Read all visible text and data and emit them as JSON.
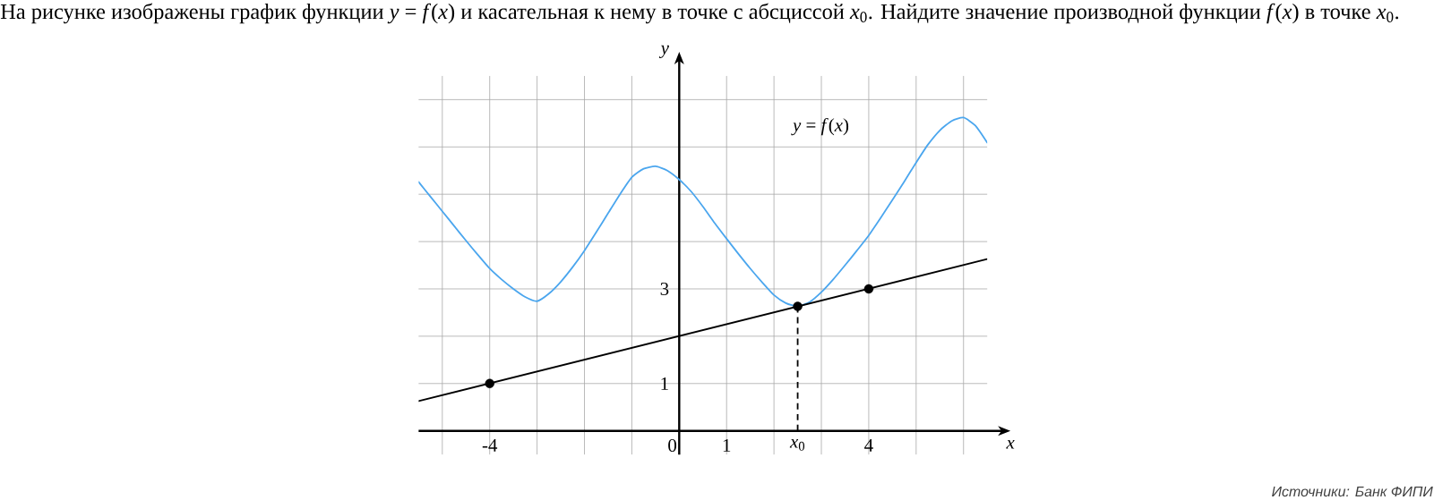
{
  "chart_data": {
    "type": "line",
    "title": "На рисунке изображены график функции *y* = *f*(*x*) и касательная к нему в точке с абсциссой *x*$_{0}$. Найдите значение производной функции *f*(*x*) в точке *x*$_{0}$.",
    "xlabel": "x",
    "ylabel": "y",
    "xlim": [
      -5.5,
      6.5
    ],
    "ylim": [
      -0.5,
      7.5
    ],
    "xticks": [
      {
        "value": -5,
        "label": null
      },
      -4,
      {
        "value": -3,
        "label": null
      },
      {
        "value": -2,
        "label": null
      },
      {
        "value": -1,
        "label": null
      },
      0,
      1,
      {
        "value": 2,
        "label": null
      },
      {
        "value": 3,
        "label": null
      },
      4,
      {
        "value": 5,
        "label": null
      },
      {
        "value": 6,
        "label": null
      }
    ],
    "yticks": [
      1,
      {
        "value": 2,
        "label": null
      },
      3,
      {
        "value": 4,
        "label": null
      },
      {
        "value": 5,
        "label": null
      },
      {
        "value": 6,
        "label": null
      },
      {
        "value": 7,
        "label": null
      }
    ],
    "grid": true,
    "annotations": [
      {
        "text": "*x*$_{0}$",
        "x": 2.5,
        "y": 0
      },
      "Источники: Банк ФИПИ"
    ],
    "series": [
      {
        "name": "*y* = *f*(*x*)",
        "color": "#4ba6ee",
        "line_style": "solid",
        "marker": "none",
        "x": [
          -5.5,
          -5.25,
          -5,
          -4.75,
          -4.5,
          -4.25,
          -4,
          -3.75,
          -3.5,
          -3.25,
          -3,
          -2.75,
          -2.5,
          -2.25,
          -2,
          -1.75,
          -1.5,
          -1.25,
          -1,
          -0.75,
          -0.5,
          -0.25,
          0,
          0.25,
          0.5,
          0.75,
          1,
          1.25,
          1.5,
          1.75,
          2,
          2.25,
          2.5,
          2.75,
          3,
          3.25,
          3.5,
          3.75,
          4,
          4.25,
          4.5,
          4.75,
          5,
          5.25,
          5.5,
          5.75,
          6,
          6.25,
          6.5
        ],
        "values": [
          5.26,
          4.95,
          4.64,
          4.33,
          4.02,
          3.72,
          3.43,
          3.2,
          3.0,
          2.83,
          2.74,
          2.9,
          3.15,
          3.46,
          3.81,
          4.2,
          4.6,
          5.0,
          5.36,
          5.54,
          5.59,
          5.5,
          5.31,
          5.06,
          4.74,
          4.39,
          4.06,
          3.74,
          3.43,
          3.14,
          2.87,
          2.7,
          2.63,
          2.72,
          2.93,
          3.2,
          3.5,
          3.81,
          4.13,
          4.5,
          4.88,
          5.27,
          5.67,
          6.05,
          6.35,
          6.55,
          6.62,
          6.45,
          6.09
        ]
      },
      {
        "color": "#000000",
        "line_style": "solid",
        "marker": "none",
        "x": [
          -5.5,
          6.5
        ],
        "values": [
          0.63,
          3.63
        ]
      },
      {
        "color": "#000000",
        "line_style": "dashed",
        "marker": "none",
        "x": [
          2.5,
          2.5
        ],
        "values": [
          0,
          2.63
        ]
      },
      {
        "type": "scatter",
        "color": "#000000",
        "marker": "circle",
        "x": [
          -4,
          2.5,
          4
        ],
        "values": [
          1,
          2.63,
          3
        ]
      }
    ]
  }
}
